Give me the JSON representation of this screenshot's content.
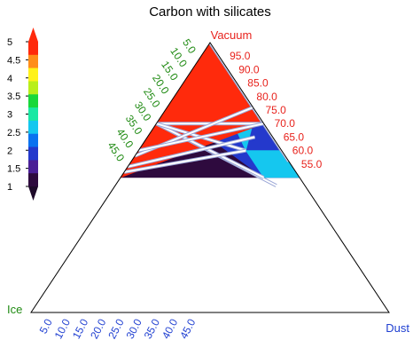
{
  "chart_data": {
    "type": "ternary-contour",
    "title": "Carbon with silicates",
    "corners": {
      "top": {
        "label": "Vacuum",
        "color": "#e8231d"
      },
      "left": {
        "label": "Ice",
        "color": "#1f8a12"
      },
      "right": {
        "label": "Dust",
        "color": "#1f3fd1"
      }
    },
    "axes": {
      "vacuum": {
        "ticks": [
          "95.0",
          "90.0",
          "85.0",
          "80.0",
          "75.0",
          "70.0",
          "65.0",
          "60.0",
          "55.0"
        ],
        "values": [
          95,
          90,
          85,
          80,
          75,
          70,
          65,
          60,
          55
        ],
        "color": "#e8231d"
      },
      "ice": {
        "ticks": [
          "5.0",
          "10.0",
          "15.0",
          "20.0",
          "25.0",
          "30.0",
          "35.0",
          "40.0",
          "45.0"
        ],
        "values": [
          5,
          10,
          15,
          20,
          25,
          30,
          35,
          40,
          45
        ],
        "color": "#1f8a12"
      },
      "dust": {
        "ticks": [
          "5.0",
          "10.0",
          "15.0",
          "20.0",
          "25.0",
          "30.0",
          "35.0",
          "40.0",
          "45.0"
        ],
        "values": [
          5,
          10,
          15,
          20,
          25,
          30,
          35,
          40,
          45
        ],
        "color": "#1f3fd1"
      }
    },
    "colorbar": {
      "ticks": [
        "5",
        "4.5",
        "4",
        "3.5",
        "3",
        "2.5",
        "2",
        "1.5",
        "1"
      ],
      "min": 1,
      "max": 5,
      "colors": [
        "#2e0a3e",
        "#4a1f96",
        "#2439cc",
        "#0a72f0",
        "#15c7ef",
        "#19e8a3",
        "#18d83a",
        "#b9ef1a",
        "#fff21a",
        "#ff8e1a",
        "#ff2a0c"
      ]
    },
    "regions": [
      {
        "level": 1.0,
        "color": "#2e0a3e",
        "points": [
          [
            0,
            50,
            50
          ],
          [
            0,
            30,
            70
          ],
          [
            25,
            0,
            75
          ],
          [
            50,
            0,
            50
          ]
        ]
      },
      {
        "level": 1.5,
        "color": "#4a1f96",
        "points": [
          [
            0,
            30,
            70
          ],
          [
            0,
            24,
            76
          ],
          [
            30,
            0,
            70
          ],
          [
            25,
            0,
            75
          ]
        ]
      },
      {
        "level": 2.0,
        "color": "#2439cc",
        "points": [
          [
            0,
            24,
            76
          ],
          [
            0,
            5,
            95
          ],
          [
            30,
            10,
            60
          ],
          [
            40,
            10,
            50
          ]
        ]
      },
      {
        "level": 2.0,
        "color": "#2439cc",
        "points": [
          [
            0,
            24,
            76
          ],
          [
            40,
            10,
            50
          ],
          [
            50,
            0,
            50
          ],
          [
            30,
            0,
            70
          ]
        ]
      },
      {
        "level": 2.5,
        "color": "#15c7ef",
        "points": [
          [
            0,
            5,
            95
          ],
          [
            0,
            0,
            100
          ],
          [
            27,
            3,
            70
          ],
          [
            30,
            10,
            60
          ]
        ]
      },
      {
        "level": 2.5,
        "color": "#15c7ef",
        "points": [
          [
            30,
            10,
            60
          ],
          [
            40,
            0,
            60
          ],
          [
            50,
            0,
            50
          ],
          [
            40,
            10,
            50
          ]
        ]
      },
      {
        "level": 3.0,
        "color": "#19e8a3",
        "points": [
          [
            0,
            0,
            100
          ],
          [
            27,
            3,
            70
          ],
          [
            25,
            1,
            74
          ],
          [
            19,
            0,
            81
          ]
        ]
      },
      {
        "level": 3.5,
        "color": "#18d83a",
        "points": [
          [
            30,
            0,
            70
          ],
          [
            24,
            6,
            70
          ],
          [
            19,
            0,
            81
          ],
          [
            25,
            1,
            74
          ]
        ]
      },
      {
        "level": 4.0,
        "color": "#b9ef1a",
        "points": [
          [
            30,
            0,
            70
          ],
          [
            21,
            9,
            70
          ],
          [
            19,
            0,
            81
          ]
        ]
      },
      {
        "level": 4.5,
        "color": "#fff21a",
        "points": [
          [
            30,
            0,
            70
          ],
          [
            17,
            13,
            70
          ],
          [
            19,
            0,
            81
          ]
        ]
      },
      {
        "level": 4.8,
        "color": "#ff8e1a",
        "points": [
          [
            30,
            0,
            70
          ],
          [
            14,
            16,
            70
          ],
          [
            16,
            0,
            84
          ]
        ]
      },
      {
        "level": 5.0,
        "color": "#ff2a0c",
        "points": [
          [
            30,
            0,
            70
          ],
          [
            0,
            0,
            100
          ],
          [
            0,
            50,
            50
          ]
        ]
      }
    ],
    "lines": [
      {
        "from": [
          0,
          0,
          100
        ],
        "to": [
          22.5,
          0,
          77.5
        ]
      },
      {
        "from": [
          0,
          0,
          100
        ],
        "to": [
          26,
          0,
          74
        ]
      },
      {
        "from": [
          0,
          0,
          100
        ],
        "to": [
          40.5,
          0,
          59.5
        ]
      },
      {
        "from": [
          0,
          0,
          100
        ],
        "to": [
          44,
          0,
          56
        ]
      },
      {
        "from": [
          0,
          30,
          70
        ],
        "to": [
          45,
          8,
          47
        ]
      },
      {
        "from": [
          0,
          30,
          70
        ],
        "to": [
          40,
          10,
          50
        ]
      },
      {
        "from": [
          0,
          30,
          70
        ],
        "to": [
          30,
          0,
          70
        ]
      },
      {
        "from": [
          0,
          30,
          70
        ],
        "to": [
          30,
          10,
          60
        ]
      },
      {
        "from": [
          0,
          42,
          58
        ],
        "to": [
          24,
          0,
          76
        ]
      },
      {
        "from": [
          0,
          40,
          60
        ],
        "to": [
          30,
          0,
          70
        ]
      },
      {
        "from": [
          0,
          46,
          54
        ],
        "to": [
          30,
          5,
          65
        ]
      },
      {
        "from": [
          0,
          48,
          52
        ],
        "to": [
          30,
          10,
          60
        ]
      }
    ]
  }
}
